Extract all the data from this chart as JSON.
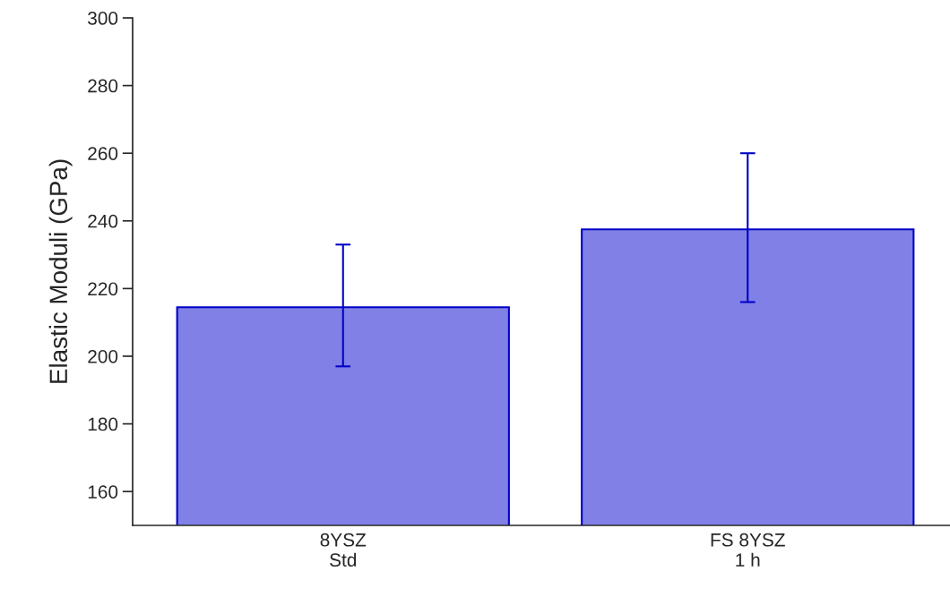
{
  "chart_data": {
    "type": "bar",
    "categories": [
      "8YSZ\nStd",
      "FS 8YSZ\n1 h"
    ],
    "values": [
      214.5,
      237.5
    ],
    "errors": [
      [
        197,
        233
      ],
      [
        216,
        260
      ]
    ],
    "color": "#8080e6",
    "ylabel": "Elastic Moduli (GPa)",
    "ylim": [
      150,
      300
    ],
    "yticks": [
      160,
      180,
      200,
      220,
      240,
      260,
      280,
      300
    ],
    "grid": false,
    "legend": false
  }
}
